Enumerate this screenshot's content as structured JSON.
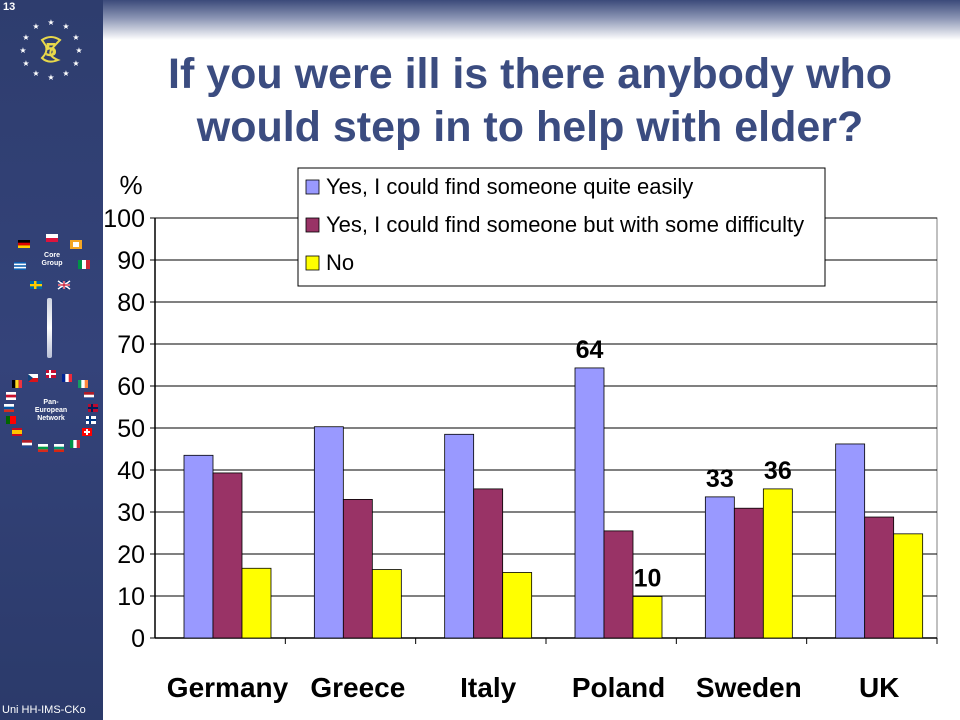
{
  "slide": {
    "number": "13",
    "title": "If you were ill is there anybody who would step in to help with elder?",
    "footer": "Uni HH-IMS-CKo",
    "sidebar": {
      "core_group_label": "Core\nGroup",
      "pan_network_label": "Pan-\nEuropean\nNetwork"
    }
  },
  "colors": {
    "sidebar": "#2e3d6e",
    "title": "#3b4c80",
    "series": [
      "#9999ff",
      "#993366",
      "#ffff00"
    ]
  },
  "chart_data": {
    "type": "bar",
    "ylabel": "%",
    "ylim": [
      0,
      100
    ],
    "yticks": [
      0,
      10,
      20,
      30,
      40,
      50,
      60,
      70,
      80,
      90,
      100
    ],
    "categories": [
      "Germany",
      "Greece",
      "Italy",
      "Poland",
      "Sweden",
      "UK"
    ],
    "series": [
      {
        "name": "Yes, I could find someone quite easily",
        "values": [
          43.5,
          50.3,
          48.5,
          64.3,
          33.6,
          46.2
        ]
      },
      {
        "name": "Yes, I could find someone but with some difficulty",
        "values": [
          39.3,
          33.0,
          35.5,
          25.5,
          30.9,
          28.8
        ]
      },
      {
        "name": "No",
        "values": [
          16.6,
          16.3,
          15.6,
          9.9,
          35.5,
          24.8
        ]
      }
    ],
    "annotations": [
      {
        "series": 0,
        "category": "Poland",
        "text": "64"
      },
      {
        "series": 2,
        "category": "Poland",
        "text": "10"
      },
      {
        "series": 0,
        "category": "Sweden",
        "text": "33"
      },
      {
        "series": 2,
        "category": "Sweden",
        "text": "36"
      }
    ],
    "grid": true,
    "legend": "top-right"
  }
}
